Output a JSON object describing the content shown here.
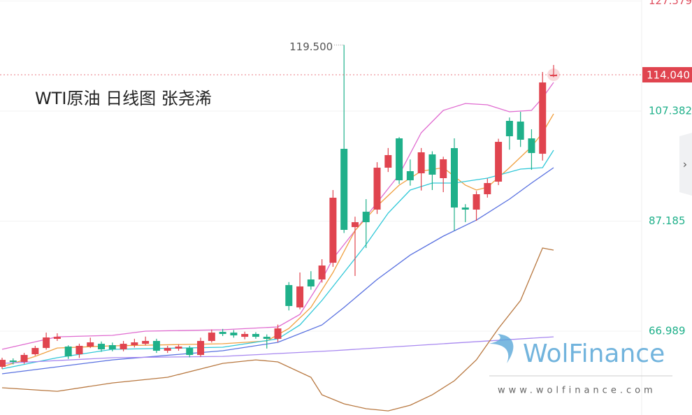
{
  "chart_data": {
    "type": "candlestick",
    "title": "WTI原油 日线图 张尧浠",
    "ylim": [
      51.61,
      127.76
    ],
    "yticks": [
      {
        "value": 127.579,
        "label": "127.579"
      },
      {
        "value": 107.382,
        "label": "107.382"
      },
      {
        "value": 87.185,
        "label": "87.185"
      },
      {
        "value": 66.989,
        "label": "66.989"
      }
    ],
    "current_price": {
      "value": 114.04,
      "label": "114.040"
    },
    "high_annotation": {
      "value": 119.5,
      "label": "119.500"
    },
    "up_color": "#e0444f",
    "down_color": "#1fb08a",
    "open": [
      60.45,
      61.61,
      61.35,
      62.76,
      63.91,
      65.58,
      64.17,
      62.76,
      64.17,
      64.68,
      64.43,
      63.66,
      64.43,
      64.68,
      65.2,
      63.4,
      63.79,
      63.91,
      62.63,
      65.2,
      66.86,
      66.73,
      65.96,
      66.48,
      65.96,
      65.58,
      75.45,
      71.35,
      76.48,
      76.48,
      79.55,
      100.45,
      86.09,
      88.91,
      89.3,
      96.99,
      102.37,
      96.35,
      95.96,
      99.43,
      95.07,
      100.58,
      89.68,
      89.3,
      92.12,
      94.43,
      105.58,
      105.45,
      102.37,
      99.55,
      113.78
    ],
    "high": [
      62.12,
      62.0,
      63.0,
      64.3,
      66.73,
      66.6,
      64.4,
      64.7,
      65.8,
      65.1,
      64.9,
      65.2,
      65.6,
      66.0,
      65.6,
      64.3,
      64.6,
      64.3,
      65.8,
      67.3,
      67.4,
      67.2,
      66.9,
      66.8,
      66.4,
      68.2,
      76.0,
      77.76,
      78.0,
      80.2,
      92.89,
      119.5,
      88.0,
      91.22,
      98.0,
      100.6,
      102.6,
      98.5,
      100.6,
      100.0,
      99.0,
      102.37,
      90.3,
      92.7,
      95.0,
      102.3,
      106.2,
      107.25,
      104.04,
      114.55,
      115.84
    ],
    "low": [
      60.07,
      60.9,
      61.0,
      62.5,
      63.6,
      65.2,
      61.9,
      62.1,
      63.9,
      63.2,
      63.3,
      63.3,
      64.0,
      64.4,
      63.0,
      63.0,
      63.4,
      62.2,
      62.3,
      64.9,
      66.1,
      65.8,
      65.5,
      65.6,
      63.8,
      65.0,
      70.8,
      71.0,
      74.6,
      75.9,
      78.8,
      85.0,
      77.12,
      82.25,
      88.5,
      96.2,
      94.0,
      93.7,
      92.8,
      92.89,
      92.5,
      85.45,
      87.0,
      87.25,
      91.5,
      93.8,
      100.3,
      100.8,
      96.6,
      98.3,
      113.6
    ],
    "close": [
      61.73,
      61.35,
      62.63,
      63.91,
      65.84,
      65.96,
      62.37,
      64.3,
      64.94,
      63.66,
      63.66,
      64.68,
      64.94,
      65.2,
      63.4,
      63.91,
      64.17,
      62.63,
      65.2,
      66.73,
      66.48,
      66.22,
      66.48,
      65.96,
      65.58,
      67.5,
      71.61,
      75.2,
      75.2,
      79.04,
      91.48,
      85.58,
      86.99,
      86.99,
      96.99,
      99.3,
      94.68,
      94.68,
      99.81,
      95.71,
      98.53,
      89.68,
      89.3,
      92.12,
      94.17,
      101.73,
      102.76,
      102.12,
      99.68,
      112.63,
      114.04
    ],
    "lines": [
      {
        "color": "#e06bd0",
        "x": [
          0,
          5,
          10,
          13,
          20,
          25,
          27,
          29,
          30,
          32,
          34,
          36,
          38,
          40,
          42,
          44,
          46,
          48,
          49,
          50
        ],
        "values": [
          63.66,
          65.96,
          66.22,
          66.99,
          67.25,
          67.76,
          70.07,
          76.48,
          80.32,
          85.45,
          90.58,
          95.71,
          103.4,
          107.5,
          108.78,
          108.53,
          107.25,
          107.5,
          109.81,
          112.63
        ]
      },
      {
        "color": "#f0a040",
        "x": [
          0,
          3,
          5,
          10,
          20,
          24,
          26,
          28,
          30,
          32,
          34,
          36,
          38,
          40,
          42,
          43,
          44,
          46,
          48,
          49,
          50
        ],
        "values": [
          60.45,
          62.37,
          63.91,
          64.3,
          64.68,
          65.2,
          67.5,
          71.35,
          77.76,
          85.45,
          89.94,
          93.79,
          96.35,
          96.99,
          93.79,
          92.89,
          93.4,
          96.99,
          100.84,
          103.4,
          106.86
        ]
      },
      {
        "color": "#30c8d8",
        "x": [
          0,
          5,
          10,
          20,
          25,
          27,
          29,
          31,
          33,
          35,
          37,
          39,
          41,
          44,
          47,
          49,
          50
        ],
        "values": [
          60.07,
          62.12,
          63.66,
          64.04,
          65.58,
          68.14,
          72.63,
          77.76,
          82.89,
          88.66,
          92.89,
          94.17,
          94.17,
          95.07,
          96.73,
          96.99,
          100.2
        ]
      },
      {
        "color": "#5870e0",
        "x": [
          0,
          10,
          20,
          25,
          29,
          31,
          34,
          37,
          40,
          43,
          46,
          48,
          50
        ],
        "values": [
          59.17,
          61.73,
          63.4,
          64.94,
          68.14,
          71.35,
          76.48,
          80.96,
          84.43,
          87.37,
          91.22,
          94.17,
          96.99
        ]
      },
      {
        "color": "#a888f0",
        "x": [
          0,
          10,
          20,
          30,
          40,
          50
        ],
        "values": [
          61.09,
          62.12,
          62.37,
          63.4,
          64.68,
          65.96
        ]
      },
      {
        "color": "#b87840",
        "x": [
          0,
          5,
          10,
          15,
          20,
          23,
          25,
          28,
          29,
          31,
          33,
          35,
          37,
          39,
          41,
          43,
          45,
          47,
          49,
          50
        ],
        "values": [
          56.61,
          55.96,
          57.5,
          58.53,
          61.09,
          61.73,
          61.35,
          58.53,
          55.32,
          53.66,
          52.76,
          52.37,
          53.4,
          55.32,
          57.89,
          61.73,
          67.5,
          72.63,
          82.25,
          81.86
        ]
      }
    ]
  },
  "watermark": {
    "brand": "WolFinance",
    "url": "www.wolfinance.com"
  }
}
